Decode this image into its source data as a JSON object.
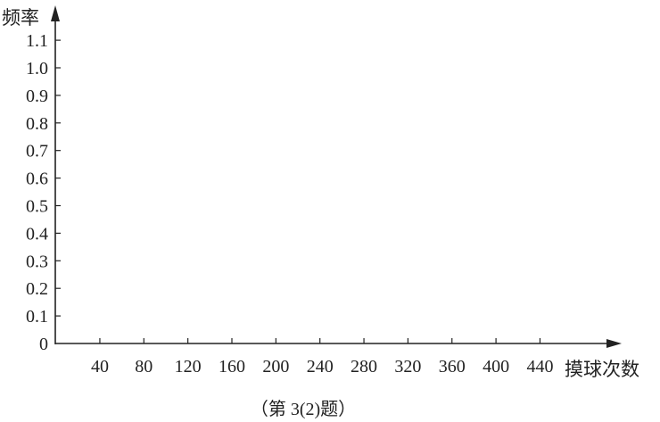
{
  "chart_data": {
    "type": "line",
    "title": "",
    "xlabel": "摸球次数",
    "ylabel": "频率",
    "x_ticks": [
      40,
      80,
      120,
      160,
      200,
      240,
      280,
      320,
      360,
      400,
      440
    ],
    "y_ticks": [
      "0",
      "0.1",
      "0.2",
      "0.3",
      "0.4",
      "0.5",
      "0.6",
      "0.7",
      "0.8",
      "0.9",
      "1.0",
      "1.1"
    ],
    "xlim": [
      0,
      540
    ],
    "ylim": [
      0,
      1.22
    ],
    "grid": false,
    "series": []
  },
  "caption": "（第 3(2)题）",
  "colors": {
    "axis": "#222222"
  }
}
